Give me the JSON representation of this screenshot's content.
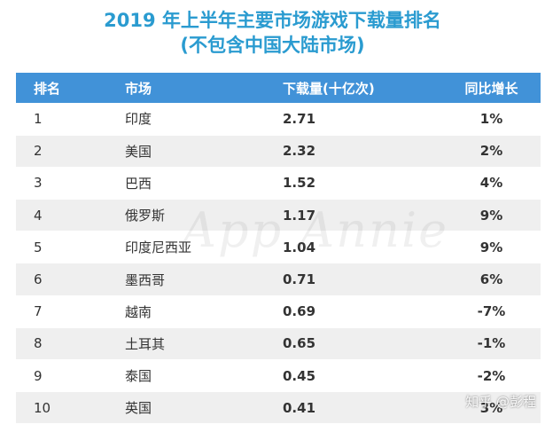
{
  "title_line1": "2019 年上半年主要市场游戏下载量排名",
  "title_line2": "(不包含中国大陆市场)",
  "watermark": "App Annie",
  "credit": "知乎 @彭程",
  "colors": {
    "title": "#2a9bd0",
    "header_bg": "#4192d8",
    "row_alt_bg": "#efefef"
  },
  "chart_data": {
    "type": "table",
    "columns": [
      "排名",
      "市场",
      "下载量(十亿次)",
      "同比增长"
    ],
    "rows": [
      [
        "1",
        "印度",
        "2.71",
        "1%"
      ],
      [
        "2",
        "美国",
        "2.32",
        "2%"
      ],
      [
        "3",
        "巴西",
        "1.52",
        "4%"
      ],
      [
        "4",
        "俄罗斯",
        "1.17",
        "9%"
      ],
      [
        "5",
        "印度尼西亚",
        "1.04",
        "9%"
      ],
      [
        "6",
        "墨西哥",
        "0.71",
        "6%"
      ],
      [
        "7",
        "越南",
        "0.69",
        "-7%"
      ],
      [
        "8",
        "土耳其",
        "0.65",
        "-1%"
      ],
      [
        "9",
        "泰国",
        "0.45",
        "-2%"
      ],
      [
        "10",
        "英国",
        "0.41",
        "3%"
      ]
    ]
  }
}
